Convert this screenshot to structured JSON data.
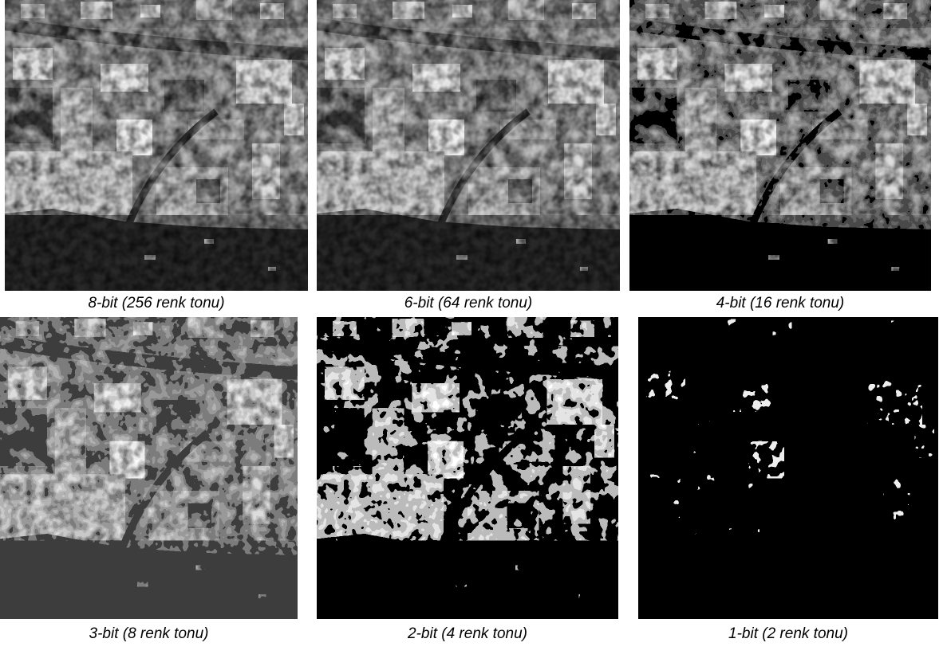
{
  "panels": [
    {
      "caption": "8-bit (256 renk tonu)"
    },
    {
      "caption": "6-bit (64 renk tonu)"
    },
    {
      "caption": "4-bit (16 renk tonu)"
    },
    {
      "caption": "3-bit (8 renk tonu)"
    },
    {
      "caption": "2-bit (4 renk tonu)"
    },
    {
      "caption": "1-bit (2 renk tonu)"
    }
  ]
}
